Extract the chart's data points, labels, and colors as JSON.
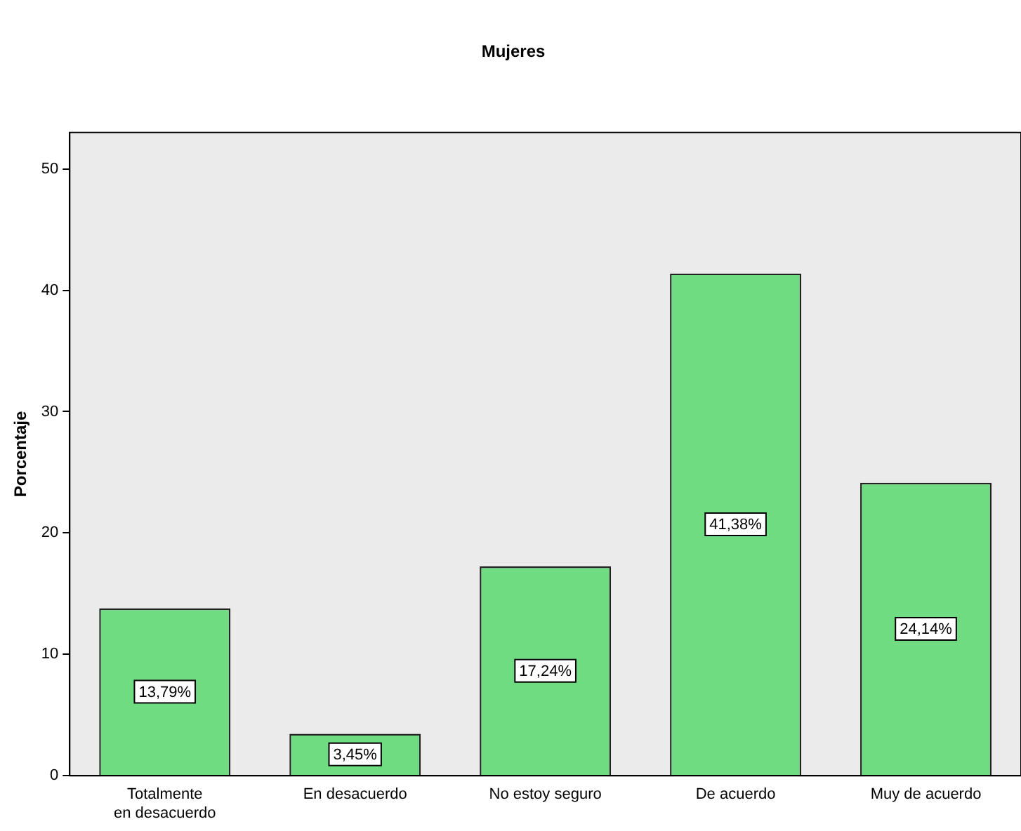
{
  "chart_data": {
    "type": "bar",
    "title": "Mujeres",
    "ylabel": "Porcentaje",
    "categories": [
      "Totalmente en desacuerdo",
      "En desacuerdo",
      "No estoy seguro",
      "De acuerdo",
      "Muy de acuerdo"
    ],
    "values": [
      13.79,
      3.45,
      17.24,
      41.38,
      24.14
    ],
    "value_labels": [
      "13,79%",
      "3,45%",
      "17,24%",
      "41,38%",
      "24,14%"
    ],
    "color": "#70dc82",
    "ylim": [
      0,
      53
    ],
    "yticks": [
      0,
      10,
      20,
      30,
      40,
      50
    ],
    "grid": false,
    "legend": false
  }
}
